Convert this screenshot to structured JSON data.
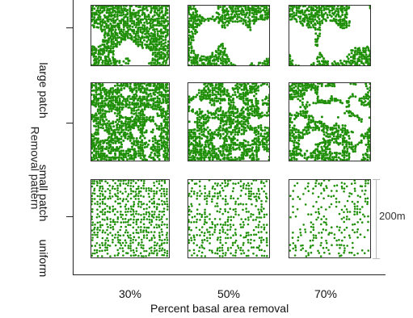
{
  "figure": {
    "x_axis_title": "Percent basal area removal",
    "y_axis_title": "Removal pattern",
    "columns": [
      "30%",
      "50%",
      "70%"
    ],
    "rows": [
      "large patch",
      "small patch",
      "uniform"
    ],
    "scale_bar_label": "200m",
    "fill_color": "#1f8f08",
    "outline_color": "#333333",
    "panels": [
      {
        "row": "large patch",
        "column": "30%",
        "retained_fraction": 0.72
      },
      {
        "row": "large patch",
        "column": "50%",
        "retained_fraction": 0.55
      },
      {
        "row": "large patch",
        "column": "70%",
        "retained_fraction": 0.35
      },
      {
        "row": "small patch",
        "column": "30%",
        "retained_fraction": 0.7
      },
      {
        "row": "small patch",
        "column": "50%",
        "retained_fraction": 0.5
      },
      {
        "row": "small patch",
        "column": "70%",
        "retained_fraction": 0.3
      },
      {
        "row": "uniform",
        "column": "30%",
        "retained_fraction": 0.7
      },
      {
        "row": "uniform",
        "column": "50%",
        "retained_fraction": 0.5
      },
      {
        "row": "uniform",
        "column": "70%",
        "retained_fraction": 0.3
      }
    ]
  }
}
